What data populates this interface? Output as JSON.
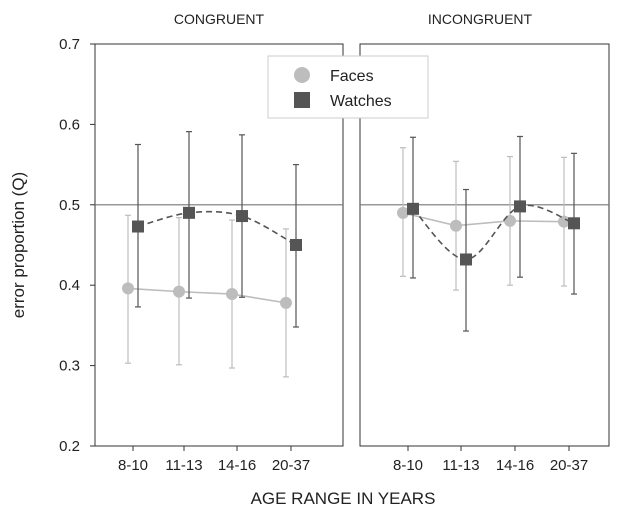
{
  "chart_data": {
    "type": "line",
    "xlabel": "AGE RANGE IN YEARS",
    "ylabel": "error proportion (Q)",
    "ylim": [
      0.2,
      0.7
    ],
    "yticks": [
      "0.2",
      "0.3",
      "0.4",
      "0.5",
      "0.6",
      "0.7"
    ],
    "reference_line": 0.5,
    "categories": [
      "8-10",
      "11-13",
      "14-16",
      "20-37"
    ],
    "legend": {
      "position": "top-right of left panel",
      "entries": [
        {
          "label": "Faces",
          "marker": "circle",
          "color": "#bdbdbd"
        },
        {
          "label": "Watches",
          "marker": "square",
          "color": "#555555"
        }
      ]
    },
    "panels": [
      {
        "title": "CONGRUENT",
        "series": [
          {
            "name": "Faces",
            "line": "solid",
            "color": "#bdbdbd",
            "values": [
              0.396,
              0.392,
              0.389,
              0.378
            ],
            "err_low": [
              0.303,
              0.301,
              0.297,
              0.286
            ],
            "err_high": [
              0.487,
              0.484,
              0.481,
              0.47
            ]
          },
          {
            "name": "Watches",
            "line": "dashed",
            "color": "#555555",
            "values": [
              0.473,
              0.49,
              0.486,
              0.45
            ],
            "err_low": [
              0.373,
              0.384,
              0.385,
              0.348
            ],
            "err_high": [
              0.575,
              0.591,
              0.587,
              0.55
            ]
          }
        ]
      },
      {
        "title": "INCONGRUENT",
        "series": [
          {
            "name": "Faces",
            "line": "solid",
            "color": "#bdbdbd",
            "values": [
              0.49,
              0.474,
              0.48,
              0.479
            ],
            "err_low": [
              0.411,
              0.394,
              0.4,
              0.399
            ],
            "err_high": [
              0.571,
              0.554,
              0.56,
              0.559
            ]
          },
          {
            "name": "Watches",
            "line": "dashed",
            "color": "#555555",
            "values": [
              0.495,
              0.432,
              0.498,
              0.477
            ],
            "err_low": [
              0.409,
              0.343,
              0.41,
              0.389
            ],
            "err_high": [
              0.584,
              0.519,
              0.585,
              0.564
            ]
          }
        ]
      }
    ]
  }
}
